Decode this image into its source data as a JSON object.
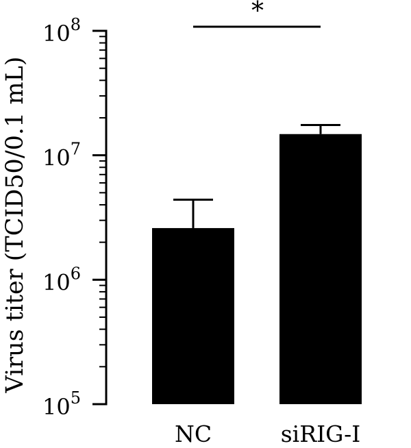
{
  "chart_data": {
    "type": "bar",
    "title": "",
    "xlabel": "",
    "ylabel": "Virus titer (TCID50/0.1 mL)",
    "yscale": "log",
    "ylim": [
      100000,
      100000000
    ],
    "yticks": [
      {
        "base": "10",
        "exp": "5",
        "value": 100000
      },
      {
        "base": "10",
        "exp": "6",
        "value": 1000000
      },
      {
        "base": "10",
        "exp": "7",
        "value": 10000000
      },
      {
        "base": "10",
        "exp": "8",
        "value": 100000000
      }
    ],
    "categories": [
      "NC",
      "siRIG-I"
    ],
    "values": [
      2600000,
      14800000
    ],
    "error_upper": [
      4400000,
      17500000
    ],
    "bar_color": "#000000",
    "significance": {
      "label": "*",
      "between": [
        "NC",
        "siRIG-I"
      ]
    }
  }
}
